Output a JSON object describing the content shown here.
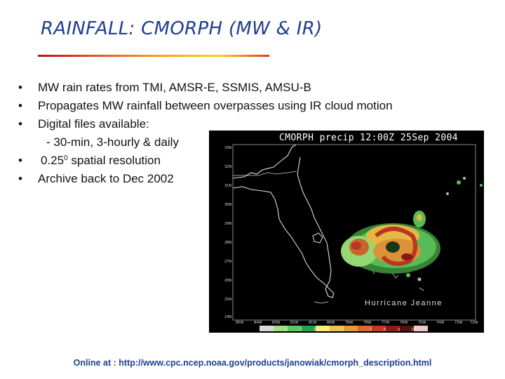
{
  "slide": {
    "title": "RAINFALL:  CMORPH (MW & IR)",
    "bullets": [
      {
        "marker": "•",
        "text": "MW rain rates from TMI, AMSR-E, SSMIS, AMSU-B"
      },
      {
        "marker": "•",
        "text": "Propagates MW rainfall between overpasses using IR cloud motion"
      },
      {
        "marker": "•",
        "text": "Digital files available:"
      },
      {
        "marker": "",
        "text": "- 30-min, 3-hourly & daily"
      },
      {
        "marker": "•",
        "text_before": "0.25",
        "superscript": "0",
        "text_after": " spatial resolution"
      },
      {
        "marker": "•",
        "text": "Archive back to Dec 2002"
      }
    ],
    "footer": "Online at : http://www.cpc.ncep.noaa.gov/products/janowiak/cmorph_description.html"
  },
  "map_image": {
    "title": "CMORPH precip 12:00Z 25Sep 2004",
    "annotation": "Hurricane Jeanne",
    "lat_labels": [
      "33N",
      "32N",
      "31N",
      "30N",
      "29N",
      "28N",
      "27N",
      "26N",
      "25N",
      "24N"
    ],
    "lon_labels": [
      "85W",
      "84W",
      "83W",
      "82W",
      "81W",
      "80W",
      "79W",
      "78W",
      "77W",
      "76W",
      "75W",
      "74W",
      "73W",
      "72W"
    ],
    "colorbar_labels": [
      "0.5",
      "1",
      "2",
      "3",
      "4",
      "5",
      "7",
      "8",
      "9",
      "10"
    ],
    "colorbar_colors": [
      "#d9d9d9",
      "#9ee27c",
      "#5cc75c",
      "#1ea64a",
      "#f5f07a",
      "#f2c24a",
      "#e79a3a",
      "#d66a2e",
      "#c23a25",
      "#8f1a1a",
      "#5a0d0d",
      "#f2c9c9"
    ]
  },
  "theme": {
    "title_color": "#1f3f8f",
    "footer_color": "#1f3f8f",
    "underline_colors": [
      "#b5121b",
      "#e0532b",
      "#f2a81d",
      "#f7d31b",
      "#e23a21"
    ]
  }
}
